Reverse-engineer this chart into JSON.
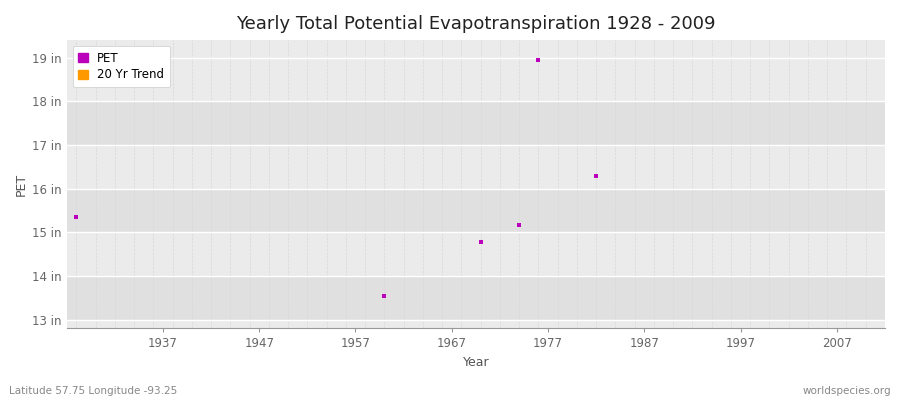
{
  "title": "Yearly Total Potential Evapotranspiration 1928 - 2009",
  "xlabel": "Year",
  "ylabel": "PET",
  "xlim": [
    1927,
    2012
  ],
  "ylim": [
    12.8,
    19.4
  ],
  "yticks": [
    13,
    14,
    15,
    16,
    17,
    18,
    19
  ],
  "ytick_labels": [
    "13 in",
    "14 in",
    "15 in",
    "16 in",
    "17 in",
    "18 in",
    "19 in"
  ],
  "xticks": [
    1937,
    1947,
    1957,
    1967,
    1977,
    1987,
    1997,
    2007
  ],
  "pet_color": "#bb00bb",
  "trend_color": "#ff9900",
  "bg_color": "#ffffff",
  "plot_bg_light": "#ebebeb",
  "plot_bg_dark": "#e0e0e0",
  "grid_color": "#ffffff",
  "minor_grid_color": "#d8d8d8",
  "scatter_points": [
    {
      "year": 1928,
      "value": 15.35
    },
    {
      "year": 1960,
      "value": 13.55
    },
    {
      "year": 1970,
      "value": 14.78
    },
    {
      "year": 1974,
      "value": 15.17
    },
    {
      "year": 1976,
      "value": 18.95
    },
    {
      "year": 1982,
      "value": 16.3
    }
  ],
  "footer_left": "Latitude 57.75 Longitude -93.25",
  "footer_right": "worldspecies.org",
  "title_fontsize": 13,
  "axis_label_fontsize": 9,
  "tick_fontsize": 8.5,
  "footer_fontsize": 7.5
}
